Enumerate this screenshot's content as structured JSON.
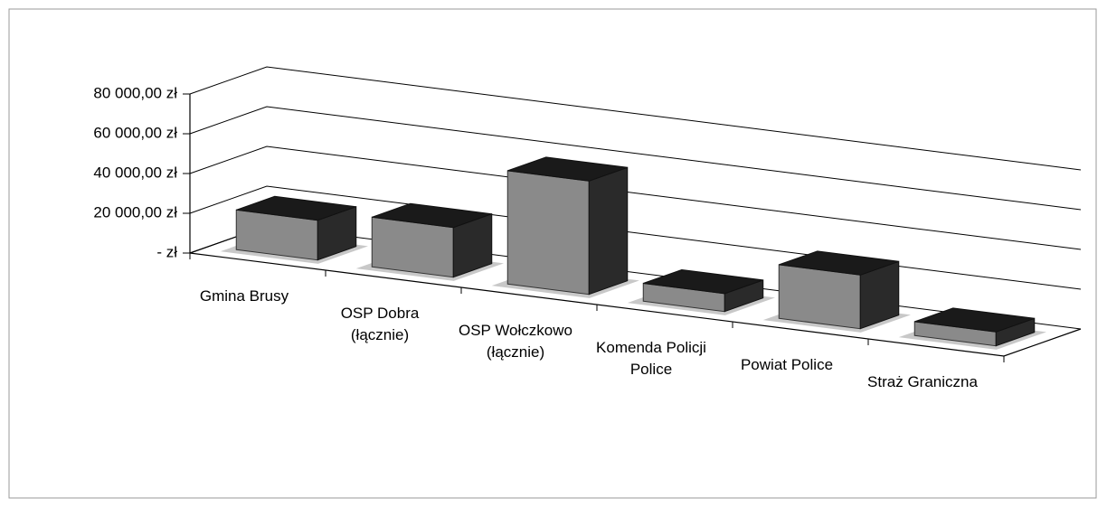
{
  "chart_data": {
    "type": "bar3d",
    "categories": [
      "Gmina Brusy",
      "OSP Dobra (łącznie)",
      "OSP Wołczkowo (łącznie)",
      "Komenda Policji Police",
      "Powiat Police",
      "Straż Graniczna"
    ],
    "values": [
      20000,
      25000,
      57000,
      9000,
      27000,
      7000
    ],
    "color": "#8a8a8a",
    "ylim": [
      0,
      80000
    ],
    "yticks": [
      {
        "value": 0,
        "label": "-  zł"
      },
      {
        "value": 20000,
        "label": "20 000,00 zł"
      },
      {
        "value": 40000,
        "label": "40 000,00 zł"
      },
      {
        "value": 60000,
        "label": "60 000,00 zł"
      },
      {
        "value": 80000,
        "label": "80 000,00 zł"
      }
    ],
    "grid": true
  }
}
